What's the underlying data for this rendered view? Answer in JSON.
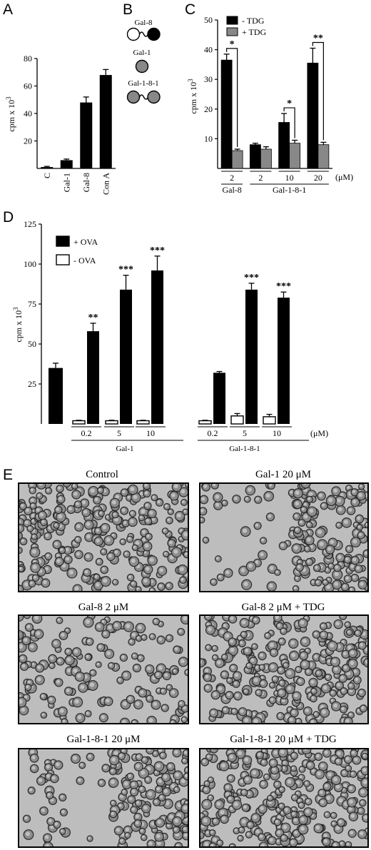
{
  "panels": {
    "A": "A",
    "B": "B",
    "C": "C",
    "D": "D",
    "E": "E"
  },
  "chart_data": [
    {
      "panel": "A",
      "type": "bar",
      "categories": [
        "C",
        "Gal-1",
        "Gal-8",
        "Con A"
      ],
      "values": [
        1,
        6,
        48,
        68
      ],
      "errors": [
        0.5,
        0.8,
        4,
        4
      ],
      "ylabel": "cpm x 10^3",
      "ylim": [
        0,
        80
      ],
      "yticks": [
        "20",
        "40",
        "60",
        "80"
      ]
    },
    {
      "panel": "C",
      "type": "bar",
      "categories": [
        "2",
        "2",
        "10",
        "20"
      ],
      "unit_label": "(μM)",
      "group_labels": [
        "Gal-8",
        "Gal-1-8-1"
      ],
      "series": [
        {
          "name": "- TDG",
          "values": [
            36.5,
            8,
            15.5,
            35.5
          ],
          "errors": [
            2,
            0.5,
            3,
            5
          ],
          "color": "#000000"
        },
        {
          "name": "+ TDG",
          "values": [
            6,
            6.5,
            8.5,
            8
          ],
          "errors": [
            0.5,
            0.8,
            1,
            0.8
          ],
          "color": "#888888"
        }
      ],
      "significance": [
        "*",
        "",
        "*",
        "**"
      ],
      "ylabel": "cpm x 10^3",
      "ylim": [
        0,
        50
      ],
      "ymin_display": 0,
      "yticks": [
        "10",
        "20",
        "30",
        "40",
        "50"
      ]
    },
    {
      "panel": "D",
      "type": "bar",
      "categories": [
        "0.2",
        "5",
        "10",
        "0.2",
        "5",
        "10"
      ],
      "unit_label": "(μM)",
      "group_labels": [
        "Gal-1",
        "Gal-1-8-1"
      ],
      "baseline": {
        "value": 35,
        "error": 3
      },
      "series": [
        {
          "name": "+ OVA",
          "values": [
            58,
            84,
            96,
            32,
            84,
            79
          ],
          "errors": [
            5,
            9,
            9,
            0.8,
            4,
            3.5
          ],
          "color": "#000000"
        },
        {
          "name": "- OVA",
          "values": [
            2,
            2,
            2,
            2,
            5,
            4.5
          ],
          "errors": [
            0.3,
            0.3,
            0.3,
            0.3,
            1.5,
            1.5
          ],
          "color": "#ffffff"
        }
      ],
      "significance": [
        "**",
        "***",
        "***",
        "",
        "***",
        "***"
      ],
      "ylabel": "cpm x 10^3",
      "ylim": [
        0,
        125
      ],
      "yticks": [
        "25",
        "50",
        "75",
        "100",
        "125"
      ]
    }
  ],
  "panel_b": {
    "labels": [
      "Gal-8",
      "Gal-1",
      "Gal-1-8-1"
    ]
  },
  "panel_e": {
    "images": [
      {
        "title": "Control"
      },
      {
        "title": "Gal-1 20 μM"
      },
      {
        "title": "Gal-8 2 μM"
      },
      {
        "title": "Gal-8 2 μM + TDG"
      },
      {
        "title": "Gal-1-8-1 20 μM"
      },
      {
        "title": "Gal-1-8-1 20 μM + TDG"
      }
    ]
  }
}
